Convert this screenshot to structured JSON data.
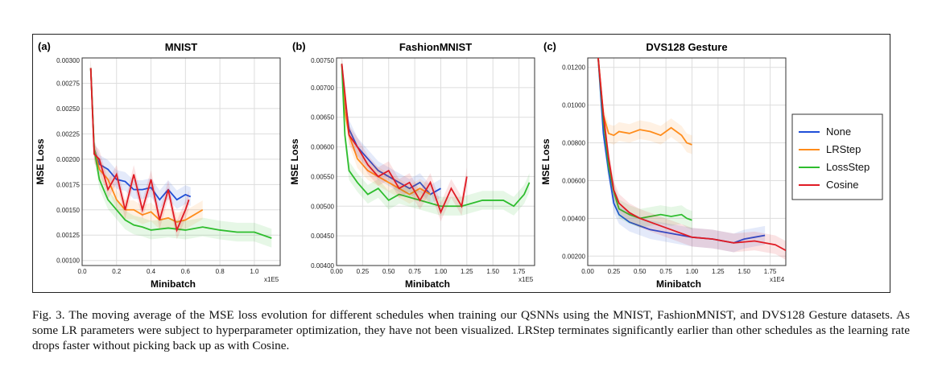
{
  "caption": "Fig. 3. The moving average of the MSE loss evolution for different schedules when training our QSNNs using the MNIST, FashionMNIST, and DVS128 Gesture datasets. As some LR parameters were subject to hyperparameter optimization, they have not been visualized. LRStep terminates significantly earlier than other schedules as the learning rate drops faster without picking back up as with Cosine.",
  "colors": {
    "None": "#1f4fd8",
    "LRStep": "#ff8c1a",
    "LossStep": "#2ebd2e",
    "Cosine": "#e01b24"
  },
  "legend": {
    "placement": "right",
    "entries": [
      "None",
      "LRStep",
      "LossStep",
      "Cosine"
    ]
  },
  "chart_data": [
    {
      "panel": "(a)",
      "title": "MNIST",
      "type": "line",
      "ylabel": "MSE Loss",
      "xlabel": "Minibatch",
      "xmultiplier": "x1E5",
      "xlim": [
        0,
        1.15
      ],
      "ylim": [
        0.00095,
        0.003
      ],
      "xticks": [
        "0.0",
        "0.2",
        "0.4",
        "0.6",
        "0.8",
        "1.0"
      ],
      "yticks": [
        "0.00100",
        "0.00125",
        "0.00150",
        "0.00175",
        "0.00200",
        "0.00225",
        "0.00250",
        "0.00275",
        "0.00300"
      ],
      "series": [
        {
          "name": "None",
          "x": [
            0.05,
            0.07,
            0.1,
            0.15,
            0.2,
            0.25,
            0.3,
            0.35,
            0.4,
            0.45,
            0.5,
            0.55,
            0.6,
            0.63
          ],
          "y": [
            0.0029,
            0.0021,
            0.00195,
            0.0019,
            0.0018,
            0.00178,
            0.0017,
            0.0017,
            0.00172,
            0.0016,
            0.0017,
            0.0016,
            0.00165,
            0.00163
          ]
        },
        {
          "name": "LRStep",
          "x": [
            0.05,
            0.07,
            0.1,
            0.15,
            0.2,
            0.25,
            0.3,
            0.35,
            0.4,
            0.45,
            0.5,
            0.55,
            0.6,
            0.65,
            0.7
          ],
          "y": [
            0.0029,
            0.0021,
            0.0019,
            0.0018,
            0.0016,
            0.0015,
            0.0015,
            0.00145,
            0.00148,
            0.0014,
            0.00142,
            0.00138,
            0.0014,
            0.00145,
            0.0015
          ]
        },
        {
          "name": "LossStep",
          "x": [
            0.05,
            0.07,
            0.1,
            0.15,
            0.2,
            0.25,
            0.3,
            0.35,
            0.4,
            0.5,
            0.6,
            0.7,
            0.8,
            0.9,
            1.0,
            1.05,
            1.1
          ],
          "y": [
            0.0029,
            0.0021,
            0.0018,
            0.0016,
            0.0015,
            0.0014,
            0.00135,
            0.00133,
            0.0013,
            0.00132,
            0.0013,
            0.00133,
            0.0013,
            0.00128,
            0.00128,
            0.00125,
            0.00122
          ]
        },
        {
          "name": "Cosine",
          "x": [
            0.05,
            0.07,
            0.1,
            0.15,
            0.2,
            0.25,
            0.3,
            0.35,
            0.4,
            0.45,
            0.5,
            0.55,
            0.6,
            0.62
          ],
          "y": [
            0.0029,
            0.00205,
            0.002,
            0.0017,
            0.00185,
            0.0015,
            0.00185,
            0.0015,
            0.0018,
            0.0014,
            0.0017,
            0.0013,
            0.0015,
            0.0016
          ]
        }
      ]
    },
    {
      "panel": "(b)",
      "title": "FashionMNIST",
      "type": "line",
      "ylabel": "MSE Loss",
      "xlabel": "Minibatch",
      "xmultiplier": "x1E5",
      "xlim": [
        0,
        1.9
      ],
      "ylim": [
        0.004,
        0.0075
      ],
      "xticks": [
        "0.00",
        "0.25",
        "0.50",
        "0.75",
        "1.00",
        "1.25",
        "1.50",
        "1.75"
      ],
      "yticks": [
        "0.00400",
        "0.00450",
        "0.00500",
        "0.00550",
        "0.00600",
        "0.00650",
        "0.00700",
        "0.00750"
      ],
      "series": [
        {
          "name": "None",
          "x": [
            0.05,
            0.08,
            0.12,
            0.2,
            0.3,
            0.4,
            0.5,
            0.6,
            0.7,
            0.8,
            0.9,
            1.0
          ],
          "y": [
            0.0074,
            0.0068,
            0.0063,
            0.006,
            0.0058,
            0.0056,
            0.0055,
            0.0054,
            0.0053,
            0.0054,
            0.0052,
            0.0053
          ]
        },
        {
          "name": "LRStep",
          "x": [
            0.05,
            0.08,
            0.12,
            0.2,
            0.3,
            0.4,
            0.5,
            0.6,
            0.7,
            0.8,
            0.9
          ],
          "y": [
            0.0074,
            0.0066,
            0.0062,
            0.0058,
            0.0056,
            0.0055,
            0.0054,
            0.0053,
            0.0052,
            0.0053,
            0.0052
          ]
        },
        {
          "name": "LossStep",
          "x": [
            0.05,
            0.08,
            0.12,
            0.2,
            0.3,
            0.4,
            0.5,
            0.6,
            0.8,
            1.0,
            1.2,
            1.4,
            1.6,
            1.7,
            1.8,
            1.85
          ],
          "y": [
            0.0074,
            0.0062,
            0.0056,
            0.0054,
            0.0052,
            0.0053,
            0.0051,
            0.0052,
            0.0051,
            0.005,
            0.005,
            0.0051,
            0.0051,
            0.005,
            0.0052,
            0.0054
          ]
        },
        {
          "name": "Cosine",
          "x": [
            0.05,
            0.08,
            0.12,
            0.2,
            0.3,
            0.4,
            0.5,
            0.6,
            0.7,
            0.8,
            0.9,
            1.0,
            1.1,
            1.2,
            1.25
          ],
          "y": [
            0.0074,
            0.0069,
            0.0062,
            0.006,
            0.0057,
            0.0055,
            0.0056,
            0.0053,
            0.0054,
            0.0051,
            0.0054,
            0.0049,
            0.0053,
            0.005,
            0.0055
          ]
        }
      ]
    },
    {
      "panel": "(c)",
      "title": "DVS128 Gesture",
      "type": "line",
      "ylabel": "MSE Loss",
      "xlabel": "Minibatch",
      "xmultiplier": "x1E4",
      "xlim": [
        0,
        1.9
      ],
      "ylim": [
        0.0015,
        0.0125
      ],
      "xticks": [
        "0.00",
        "0.25",
        "0.50",
        "0.75",
        "1.00",
        "1.25",
        "1.50",
        "1.75"
      ],
      "yticks": [
        "0.00200",
        "0.00400",
        "0.00600",
        "0.00800",
        "0.01000",
        "0.01200"
      ],
      "series": [
        {
          "name": "None",
          "x": [
            0.1,
            0.15,
            0.2,
            0.25,
            0.3,
            0.4,
            0.5,
            0.6,
            0.8,
            1.0,
            1.2,
            1.4,
            1.5,
            1.6,
            1.7
          ],
          "y": [
            0.0125,
            0.0085,
            0.0065,
            0.0048,
            0.0042,
            0.0038,
            0.0036,
            0.0034,
            0.0032,
            0.003,
            0.0029,
            0.0027,
            0.0029,
            0.003,
            0.0031
          ]
        },
        {
          "name": "LRStep",
          "x": [
            0.1,
            0.15,
            0.2,
            0.25,
            0.3,
            0.4,
            0.5,
            0.6,
            0.7,
            0.8,
            0.9,
            0.95,
            1.0
          ],
          "y": [
            0.0125,
            0.0095,
            0.0085,
            0.0084,
            0.0086,
            0.0085,
            0.0087,
            0.0086,
            0.0084,
            0.0088,
            0.0084,
            0.008,
            0.0079
          ]
        },
        {
          "name": "LossStep",
          "x": [
            0.1,
            0.15,
            0.2,
            0.25,
            0.3,
            0.4,
            0.5,
            0.6,
            0.7,
            0.8,
            0.9,
            0.95,
            1.0
          ],
          "y": [
            0.0125,
            0.0092,
            0.0068,
            0.0054,
            0.0045,
            0.0042,
            0.004,
            0.0041,
            0.0042,
            0.0041,
            0.0042,
            0.004,
            0.0039
          ]
        },
        {
          "name": "Cosine",
          "x": [
            0.1,
            0.15,
            0.2,
            0.25,
            0.3,
            0.4,
            0.5,
            0.6,
            0.8,
            1.0,
            1.2,
            1.4,
            1.6,
            1.8,
            1.9
          ],
          "y": [
            0.0125,
            0.0095,
            0.0072,
            0.0055,
            0.0048,
            0.0043,
            0.004,
            0.0038,
            0.0034,
            0.003,
            0.0029,
            0.0027,
            0.0028,
            0.0026,
            0.0023
          ]
        }
      ]
    }
  ]
}
